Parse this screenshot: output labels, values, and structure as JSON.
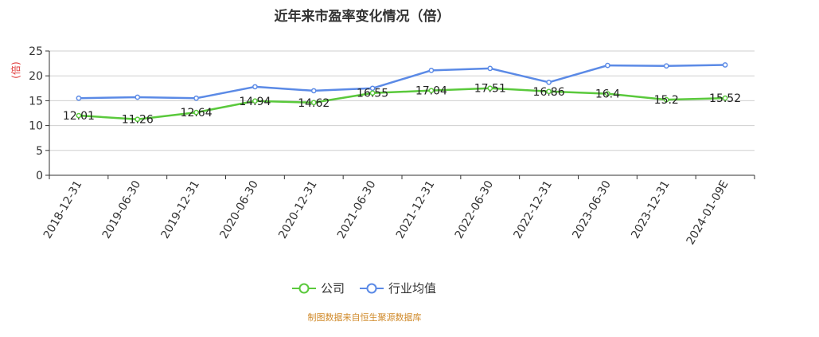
{
  "chart_data": {
    "type": "line",
    "title": "近年来市盈率变化情况（倍）",
    "ylabel": "(倍)",
    "xlabel": "",
    "ylim": [
      0,
      25
    ],
    "yticks": [
      "0",
      "5",
      "10",
      "15",
      "20",
      "25"
    ],
    "categories": [
      "2018-12-31",
      "2019-06-30",
      "2019-12-31",
      "2020-06-30",
      "2020-12-31",
      "2021-06-30",
      "2021-12-31",
      "2022-06-30",
      "2022-12-31",
      "2023-06-30",
      "2023-12-31",
      "2024-01-09E"
    ],
    "series": [
      {
        "name": "公司",
        "color": "#5ac93c",
        "values": [
          12.01,
          11.26,
          12.64,
          14.94,
          14.62,
          16.55,
          17.04,
          17.51,
          16.86,
          16.4,
          15.2,
          15.52
        ],
        "labels": [
          "12.01",
          "11.26",
          "12.64",
          "14.94",
          "14.62",
          "16.55",
          "17.04",
          "17.51",
          "16.86",
          "16.4",
          "15.2",
          "15.52"
        ]
      },
      {
        "name": "行业均值",
        "color": "#5b8ae6",
        "values": [
          15.5,
          15.7,
          15.5,
          17.8,
          17.0,
          17.5,
          21.1,
          21.5,
          18.7,
          22.1,
          22.0,
          22.2
        ]
      }
    ],
    "grid": true,
    "legend": "bottom-center"
  },
  "source_note": "制图数据来自恒生聚源数据库"
}
